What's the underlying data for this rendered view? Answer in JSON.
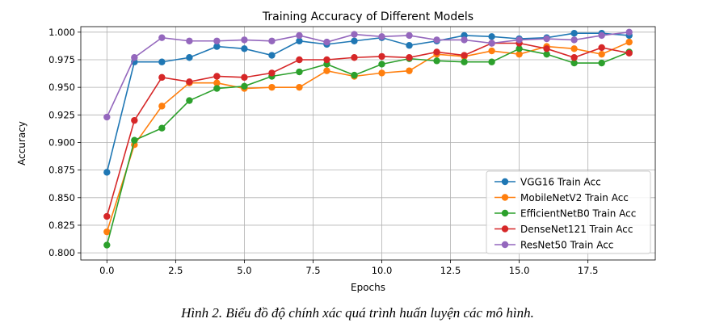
{
  "chart_data": {
    "type": "line",
    "title": "Training Accuracy of Different Models",
    "xlabel": "Epochs",
    "ylabel": "Accuracy",
    "xlim": [
      -0.95,
      19.95
    ],
    "ylim": [
      0.7935,
      1.005
    ],
    "grid": true,
    "legend_position": "lower-right",
    "xticks": [
      0.0,
      2.5,
      5.0,
      7.5,
      10.0,
      12.5,
      15.0,
      17.5
    ],
    "xtick_labels": [
      "0.0",
      "2.5",
      "5.0",
      "7.5",
      "10.0",
      "12.5",
      "15.0",
      "17.5"
    ],
    "yticks": [
      0.8,
      0.825,
      0.85,
      0.875,
      0.9,
      0.925,
      0.95,
      0.975,
      1.0
    ],
    "ytick_labels": [
      "0.800",
      "0.825",
      "0.850",
      "0.875",
      "0.900",
      "0.925",
      "0.950",
      "0.975",
      "1.000"
    ],
    "x": [
      0,
      1,
      2,
      3,
      4,
      5,
      6,
      7,
      8,
      9,
      10,
      11,
      12,
      13,
      14,
      15,
      16,
      17,
      18,
      19
    ],
    "series": [
      {
        "name": "VGG16 Train Acc",
        "color": "#1f77b4",
        "values": [
          0.873,
          0.973,
          0.973,
          0.977,
          0.987,
          0.985,
          0.979,
          0.992,
          0.989,
          0.992,
          0.995,
          0.988,
          0.992,
          0.997,
          0.996,
          0.994,
          0.995,
          0.999,
          0.999,
          0.997
        ]
      },
      {
        "name": "MobileNetV2 Train Acc",
        "color": "#ff7f0e",
        "values": [
          0.819,
          0.898,
          0.933,
          0.954,
          0.954,
          0.949,
          0.95,
          0.95,
          0.965,
          0.96,
          0.963,
          0.965,
          0.98,
          0.978,
          0.983,
          0.98,
          0.987,
          0.985,
          0.98,
          0.991
        ]
      },
      {
        "name": "EfficientNetB0 Train Acc",
        "color": "#2ca02c",
        "values": [
          0.807,
          0.902,
          0.913,
          0.938,
          0.949,
          0.951,
          0.96,
          0.964,
          0.971,
          0.961,
          0.971,
          0.976,
          0.974,
          0.973,
          0.973,
          0.985,
          0.98,
          0.972,
          0.972,
          0.982
        ]
      },
      {
        "name": "DenseNet121 Train Acc",
        "color": "#d62728",
        "values": [
          0.833,
          0.92,
          0.959,
          0.955,
          0.96,
          0.959,
          0.963,
          0.975,
          0.975,
          0.977,
          0.978,
          0.977,
          0.982,
          0.979,
          0.99,
          0.99,
          0.985,
          0.977,
          0.986,
          0.981
        ]
      },
      {
        "name": "ResNet50 Train Acc",
        "color": "#9467bd",
        "values": [
          0.923,
          0.977,
          0.995,
          0.992,
          0.992,
          0.993,
          0.992,
          0.997,
          0.991,
          0.998,
          0.996,
          0.997,
          0.993,
          0.993,
          0.99,
          0.993,
          0.994,
          0.993,
          0.997,
          1.0
        ]
      }
    ]
  },
  "caption": "Hình  2. Biểu đồ độ chính xác quá trình huấn luyện các mô hình."
}
